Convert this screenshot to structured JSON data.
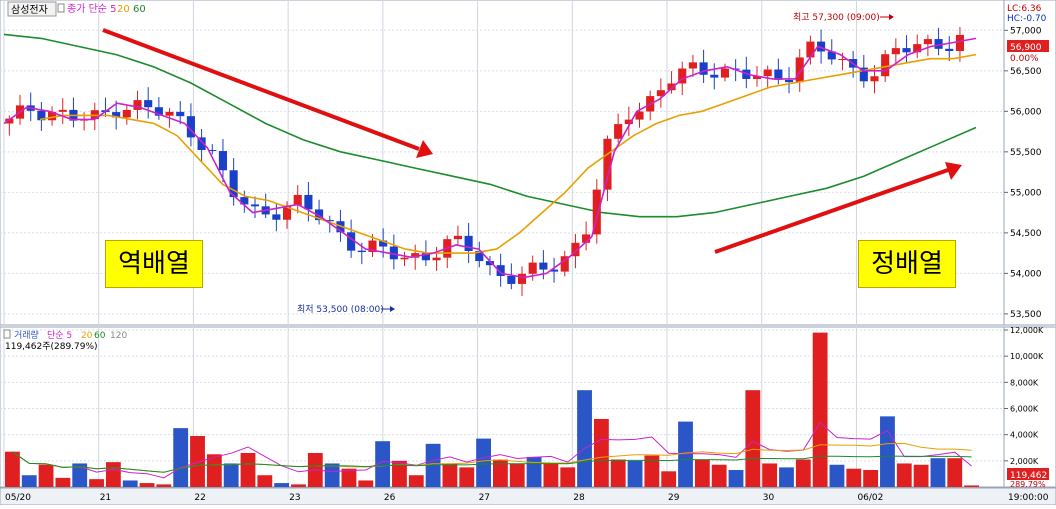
{
  "header": {
    "stock_name": "삼성전자",
    "legend_items": [
      {
        "label": "종가 단순 5",
        "color": "#cc22cc"
      },
      {
        "label": "20",
        "color": "#e8a000"
      },
      {
        "label": "60",
        "color": "#1c8c2c"
      }
    ],
    "lc_text": "LC:6.36",
    "hc_text": "HC:-0.70"
  },
  "annotations": {
    "high": "최고 57,300 (09:00)",
    "low": "최저 53,500 (08:00)",
    "reverse_label": "역배열",
    "forward_label": "정배열"
  },
  "price_panel": {
    "current_price": "56,900",
    "current_change": "0.00%",
    "y_ticks": [
      "57,000",
      "56,500",
      "56,000",
      "55,500",
      "55,000",
      "54,500",
      "54,000",
      "53,500"
    ]
  },
  "volume_panel": {
    "legend_items": [
      {
        "label": "거래량",
        "color": "#3355cc"
      },
      {
        "label": "단순 5",
        "color": "#cc22cc"
      },
      {
        "label": "20",
        "color": "#e8a000"
      },
      {
        "label": "60",
        "color": "#1c8c2c"
      },
      {
        "label": "120",
        "color": "#888888"
      }
    ],
    "info": "119,462주(289.79%)",
    "current_volume": "119,462",
    "current_ratio": "289.79%",
    "y_ticks": [
      "12,000K",
      "10,000K",
      "8,000K",
      "6,000K",
      "4,000K",
      "2,000K"
    ]
  },
  "x_axis": {
    "labels": [
      "05/20",
      "21",
      "22",
      "23",
      "26",
      "27",
      "28",
      "29",
      "30",
      "06/02"
    ],
    "time_label": "19:00:00"
  },
  "chart_data": [
    {
      "type": "candlestick",
      "title": "삼성전자",
      "x_labels": [
        "05/20",
        "21",
        "22",
        "23",
        "26",
        "27",
        "28",
        "29",
        "30",
        "06/02"
      ],
      "ylim": [
        53400,
        57300
      ],
      "high": 57300,
      "low": 53500,
      "last": 56900,
      "ma_series": [
        {
          "name": "5",
          "color": "#cc22cc",
          "values": [
            55850,
            56050,
            56000,
            55900,
            55900,
            56100,
            56050,
            55950,
            55850,
            55550,
            55000,
            54750,
            54800,
            54850,
            54700,
            54500,
            54300,
            54250,
            54200,
            54250,
            54350,
            54300,
            54000,
            53950,
            54000,
            54200,
            54450,
            55500,
            56000,
            56150,
            56400,
            56500,
            56550,
            56450,
            56400,
            56400,
            56800,
            56700,
            56500,
            56500,
            56700,
            56800,
            56850,
            56900
          ]
        },
        {
          "name": "20",
          "color": "#e8a000",
          "values": [
            55900,
            55950,
            55950,
            55950,
            55900,
            55850,
            55700,
            55400,
            55100,
            54950,
            54900,
            54800,
            54700,
            54600,
            54500,
            54400,
            54300,
            54250,
            54250,
            54250,
            54300,
            54500,
            54750,
            55000,
            55300,
            55500,
            55700,
            55850,
            55950,
            56000,
            56100,
            56200,
            56300,
            56350,
            56400,
            56450,
            56500,
            56550,
            56600,
            56650,
            56650,
            56700
          ]
        },
        {
          "name": "60",
          "color": "#1c8c2c",
          "values": [
            56950,
            56900,
            56800,
            56700,
            56550,
            56350,
            56100,
            55850,
            55650,
            55500,
            55400,
            55300,
            55200,
            55100,
            54950,
            54850,
            54750,
            54700,
            54700,
            54750,
            54850,
            54950,
            55050,
            55200,
            55400,
            55600,
            55800
          ]
        }
      ]
    },
    {
      "type": "bar",
      "title": "거래량",
      "ylim": [
        0,
        12000
      ],
      "unit": "K",
      "series_name": "거래량",
      "values": [
        2700,
        900,
        1700,
        700,
        1800,
        600,
        1900,
        500,
        300,
        200,
        4500,
        3900,
        2500,
        1800,
        2600,
        900,
        300,
        200,
        2600,
        1800,
        1400,
        500,
        3500,
        2000,
        900,
        3300,
        1800,
        1500,
        3700,
        2100,
        1800,
        2300,
        1800,
        1500,
        7400,
        5200,
        2100,
        2000,
        2400,
        1200,
        5000,
        2100,
        1700,
        1300,
        7400,
        1800,
        1500,
        2100,
        11800,
        1700,
        1400,
        1300,
        5400,
        1800,
        1700,
        2200,
        2200,
        120
      ]
    }
  ]
}
